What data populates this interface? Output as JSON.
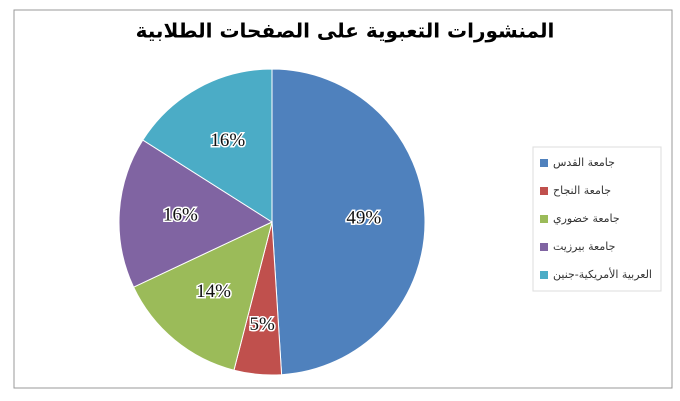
{
  "chart_data": {
    "type": "pie",
    "title": "المنشورات التعبوية على الصفحات الطلابية",
    "categories": [
      "جامعة القدس",
      "جامعة النجاح",
      "جامعة خضوري",
      "جامعة بيرزيت",
      "العربية الأمريكية-جنين"
    ],
    "values": [
      49,
      5,
      14,
      16,
      16
    ],
    "value_labels": [
      "49%",
      "5%",
      "14%",
      "16%",
      "16%"
    ],
    "colors": [
      "#4f81bd",
      "#c0504d",
      "#9bbb59",
      "#8064a2",
      "#4bacc6"
    ],
    "legend": "right"
  }
}
